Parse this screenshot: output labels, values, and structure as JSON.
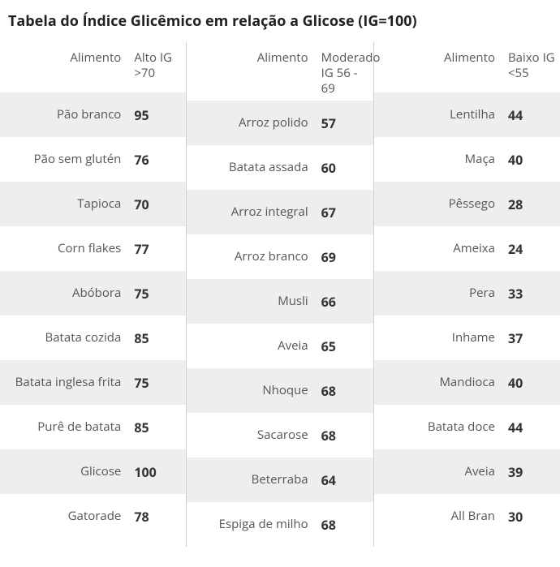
{
  "title": "Tabela do Índice Glicêmico em relação a Glicose (IG=100)",
  "colors": {
    "background": "#ffffff",
    "stripe": "#eeeeee",
    "text": "#555555",
    "title": "#222222",
    "value": "#333333",
    "divider": "#d0d0d0"
  },
  "typography": {
    "title_fontsize": 18,
    "title_weight": 700,
    "cell_fontsize": 15,
    "value_fontsize": 16,
    "value_weight": 700
  },
  "columns": [
    {
      "food_header": "Alimento",
      "val_header": "Alto IG >70",
      "rows": [
        {
          "food": "Pão branco",
          "value": 95
        },
        {
          "food": "Pão sem glutén",
          "value": 76
        },
        {
          "food": "Tapioca",
          "value": 70
        },
        {
          "food": "Corn flakes",
          "value": 77
        },
        {
          "food": "Abóbora",
          "value": 75
        },
        {
          "food": "Batata cozida",
          "value": 85
        },
        {
          "food": "Batata inglesa frita",
          "value": 75
        },
        {
          "food": "Purê de batata",
          "value": 85
        },
        {
          "food": "Glicose",
          "value": 100
        },
        {
          "food": "Gatorade",
          "value": 78
        }
      ]
    },
    {
      "food_header": "Alimento",
      "val_header": "Moderado IG 56 - 69",
      "rows": [
        {
          "food": "Arroz polido",
          "value": 57
        },
        {
          "food": "Batata assada",
          "value": 60
        },
        {
          "food": "Arroz integral",
          "value": 67
        },
        {
          "food": "Arroz branco",
          "value": 69
        },
        {
          "food": "Musli",
          "value": 66
        },
        {
          "food": "Aveia",
          "value": 65
        },
        {
          "food": "Nhoque",
          "value": 68
        },
        {
          "food": "Sacarose",
          "value": 68
        },
        {
          "food": "Beterraba",
          "value": 64
        },
        {
          "food": "Espiga de milho",
          "value": 68
        }
      ]
    },
    {
      "food_header": "Alimento",
      "val_header": "Baixo IG <55",
      "rows": [
        {
          "food": "Lentilha",
          "value": 44
        },
        {
          "food": "Maça",
          "value": 40
        },
        {
          "food": "Pêssego",
          "value": 28
        },
        {
          "food": "Ameixa",
          "value": 24
        },
        {
          "food": "Pera",
          "value": 33
        },
        {
          "food": "Inhame",
          "value": 37
        },
        {
          "food": "Mandioca",
          "value": 40
        },
        {
          "food": "Batata doce",
          "value": 44
        },
        {
          "food": "Aveia",
          "value": 39
        },
        {
          "food": "All Bran",
          "value": 30
        }
      ]
    }
  ]
}
